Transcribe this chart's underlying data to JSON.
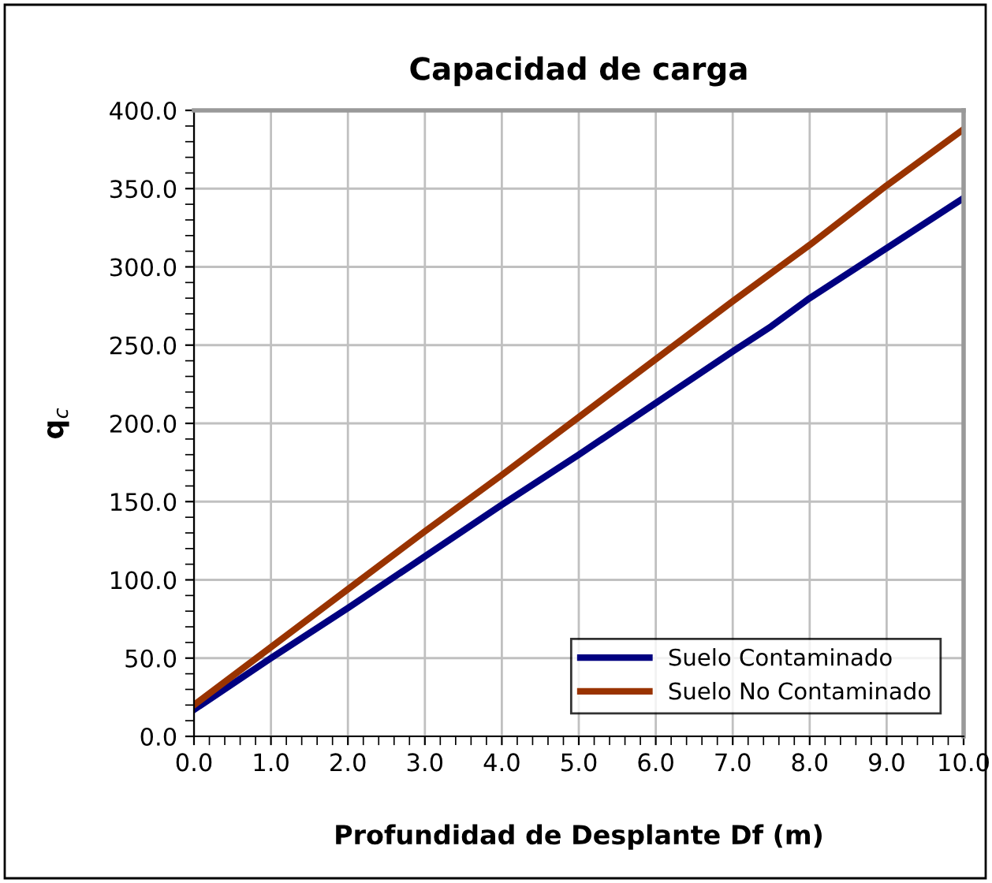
{
  "chart_data": {
    "type": "line",
    "title": "Capacidad de carga",
    "xlabel": "Profundidad de Desplante Df (m)",
    "ylabel": "q$_{c}$",
    "x": [
      0,
      1,
      2,
      3,
      4,
      5,
      6,
      7,
      7.5,
      8,
      9,
      10
    ],
    "series": [
      {
        "name": "Suelo Contaminado",
        "color": "#000080",
        "values": [
          17,
          50,
          82,
          115,
          148,
          180,
          213,
          246,
          262,
          280,
          312,
          344
        ]
      },
      {
        "name": "Suelo No Contaminado",
        "color": "#993300",
        "values": [
          20,
          57,
          94,
          131,
          167,
          204,
          241,
          278,
          296,
          314,
          352,
          388
        ]
      }
    ],
    "xlim": [
      0,
      10
    ],
    "ylim": [
      0,
      400
    ],
    "xticks": [
      {
        "value": 0,
        "label": "0.0"
      },
      {
        "value": 1,
        "label": "1.0"
      },
      {
        "value": 2,
        "label": "2.0"
      },
      {
        "value": 3,
        "label": "3.0"
      },
      {
        "value": 4,
        "label": "4.0"
      },
      {
        "value": 5,
        "label": "5.0"
      },
      {
        "value": 6,
        "label": "6.0"
      },
      {
        "value": 7,
        "label": "7.0"
      },
      {
        "value": 8,
        "label": "8.0"
      },
      {
        "value": 9,
        "label": "9.0"
      },
      {
        "value": 10,
        "label": "10.0"
      }
    ],
    "yticks": [
      {
        "value": 0,
        "label": "0.0"
      },
      {
        "value": 50,
        "label": "50.0"
      },
      {
        "value": 100,
        "label": "100.0"
      },
      {
        "value": 150,
        "label": "150.0"
      },
      {
        "value": 200,
        "label": "200.0"
      },
      {
        "value": 250,
        "label": "250.0"
      },
      {
        "value": 300,
        "label": "300.0"
      },
      {
        "value": 350,
        "label": "350.0"
      },
      {
        "value": 400,
        "label": "400.0"
      }
    ],
    "grid": true,
    "legend": "bottom right",
    "marker": "none",
    "line_style": "solid"
  }
}
